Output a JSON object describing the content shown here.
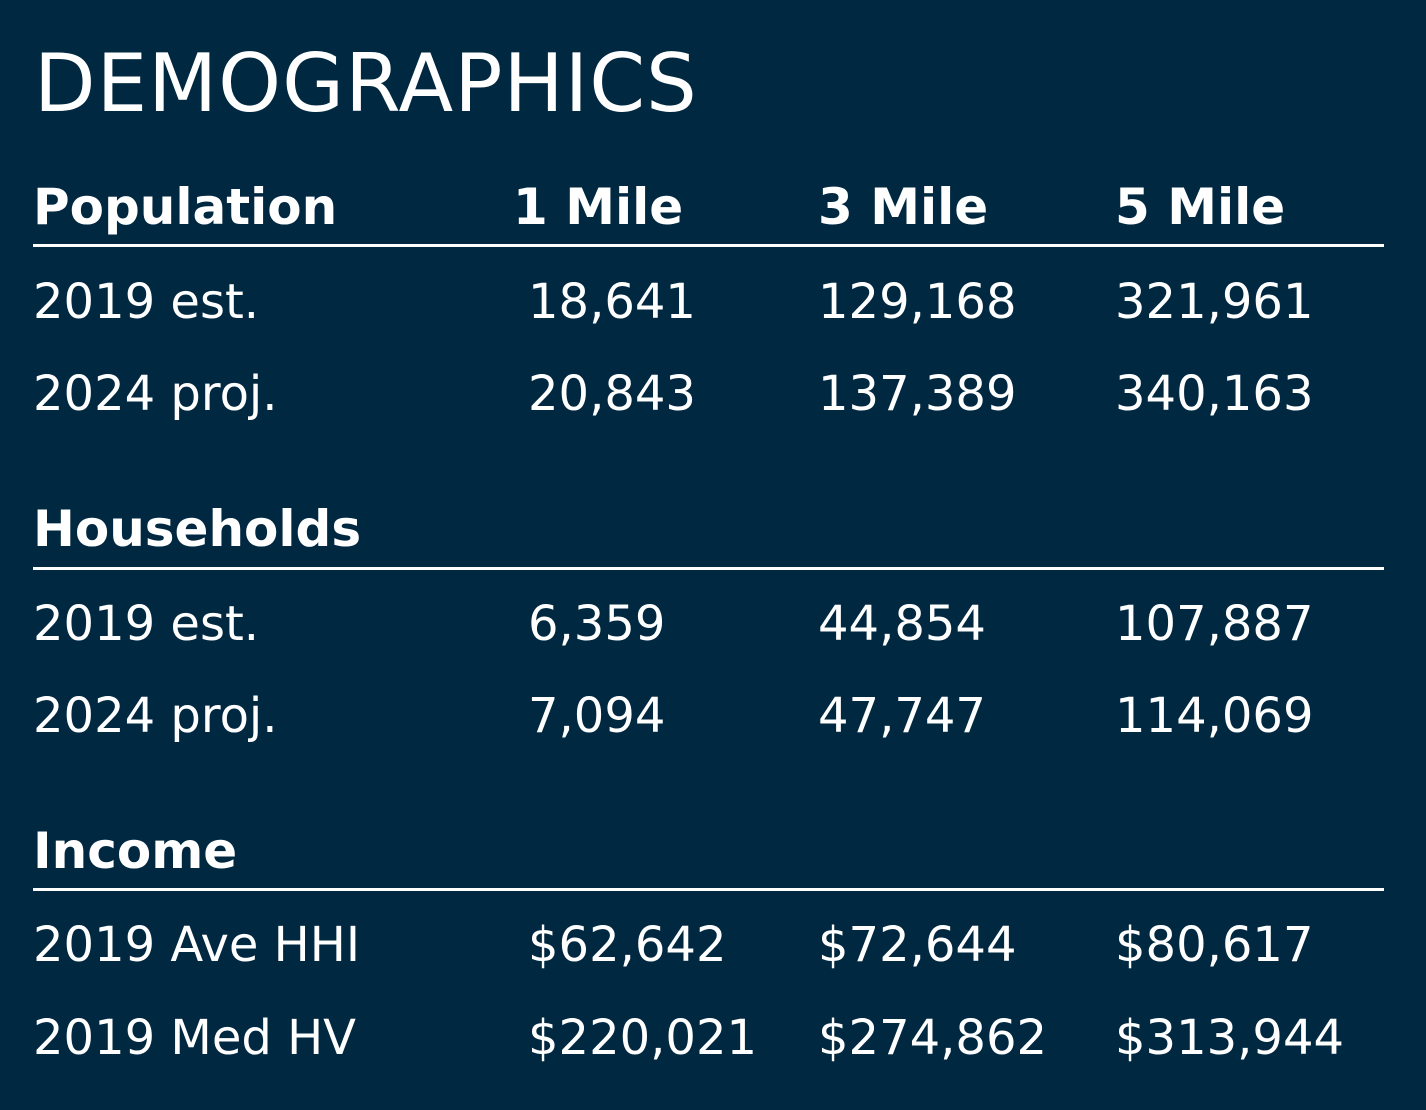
{
  "title": "DEMOGRAPHICS",
  "columns": [
    "1 Mile",
    "3 Mile",
    "5 Mile"
  ],
  "sections": [
    {
      "heading": "Population",
      "rows": [
        {
          "label": "2019 est.",
          "values": [
            "18,641",
            "129,168",
            "321,961"
          ]
        },
        {
          "label": "2024 proj.",
          "values": [
            "20,843",
            "137,389",
            "340,163"
          ]
        }
      ]
    },
    {
      "heading": "Households",
      "rows": [
        {
          "label": "2019 est.",
          "values": [
            "6,359",
            "44,854",
            "107,887"
          ]
        },
        {
          "label": "2024 proj.",
          "values": [
            "7,094",
            "47,747",
            "114,069"
          ]
        }
      ]
    },
    {
      "heading": "Income",
      "rows": [
        {
          "label": "2019 Ave HHI",
          "values": [
            "$62,642",
            "$72,644",
            "$80,617"
          ]
        },
        {
          "label": "2019 Med HV",
          "values": [
            "$220,021",
            "$274,862",
            "$313,944"
          ]
        }
      ]
    }
  ],
  "colors": {
    "background": "#012841",
    "text": "#ffffff"
  }
}
